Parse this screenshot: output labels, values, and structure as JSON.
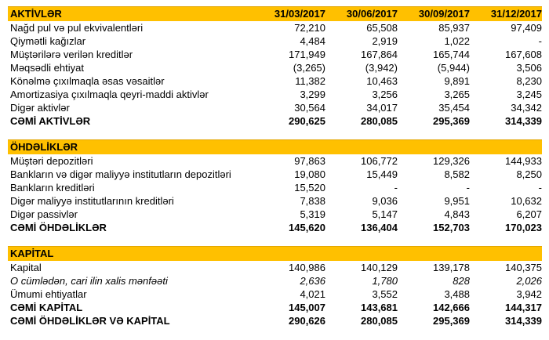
{
  "table": {
    "accent_color": "#FFC000",
    "text_color": "#000000",
    "date_columns": [
      "31/03/2017",
      "30/06/2017",
      "30/09/2017",
      "31/12/2017"
    ],
    "sections": [
      {
        "header": "AKTİVLƏR",
        "show_dates": true,
        "rows": [
          {
            "label": "Nağd pul və pul ekvivalentləri",
            "style": "normal",
            "values": [
              "72,210",
              "65,508",
              "85,937",
              "97,409"
            ]
          },
          {
            "label": "Qiymətli kağızlar",
            "style": "normal",
            "values": [
              "4,484",
              "2,919",
              "1,022",
              "-"
            ]
          },
          {
            "label": "Müştərilərə verilən kreditlər",
            "style": "normal",
            "values": [
              "171,949",
              "167,864",
              "165,744",
              "167,608"
            ]
          },
          {
            "label": "Məqsədli ehtiyat",
            "style": "normal",
            "values": [
              "(3,265)",
              "(3,942)",
              "(5,944)",
              "3,506"
            ]
          },
          {
            "label": "Könəlmə çıxılmaqla əsas vəsaitlər",
            "style": "normal",
            "values": [
              "11,382",
              "10,463",
              "9,891",
              "8,230"
            ]
          },
          {
            "label": "Amortizasiya çıxılmaqla qeyri-maddi aktivlər",
            "style": "normal",
            "values": [
              "3,299",
              "3,256",
              "3,265",
              "3,245"
            ]
          },
          {
            "label": "Digər aktivlər",
            "style": "normal",
            "values": [
              "30,564",
              "34,017",
              "35,454",
              "34,342"
            ]
          },
          {
            "label": "CƏMİ AKTİVLƏR",
            "style": "total",
            "values": [
              "290,625",
              "280,085",
              "295,369",
              "314,339"
            ]
          }
        ]
      },
      {
        "header": "ÖHDƏLİKLƏR",
        "show_dates": false,
        "rows": [
          {
            "label": "Müştəri depozitləri",
            "style": "normal",
            "values": [
              "97,863",
              "106,772",
              "129,326",
              "144,933"
            ]
          },
          {
            "label": "Bankların və digər maliyyə institutların depozitləri",
            "style": "normal",
            "values": [
              "19,080",
              "15,449",
              "8,582",
              "8,250"
            ]
          },
          {
            "label": "Bankların kreditləri",
            "style": "normal",
            "values": [
              "15,520",
              "-",
              "-",
              "-"
            ]
          },
          {
            "label": "Digər maliyyə institutlarının kreditləri",
            "style": "normal",
            "values": [
              "7,838",
              "9,036",
              "9,951",
              "10,632"
            ]
          },
          {
            "label": "Digər passivlər",
            "style": "normal",
            "values": [
              "5,319",
              "5,147",
              "4,843",
              "6,207"
            ]
          },
          {
            "label": "CƏMİ ÖHDƏLİKLƏR",
            "style": "total",
            "values": [
              "145,620",
              "136,404",
              "152,703",
              "170,023"
            ]
          }
        ]
      },
      {
        "header": "KAPİTAL",
        "show_dates": false,
        "rows": [
          {
            "label": "Kapital",
            "style": "normal",
            "values": [
              "140,986",
              "140,129",
              "139,178",
              "140,375"
            ]
          },
          {
            "label": "O cümlədən, cari ilin xalis mənfəəti",
            "style": "italic",
            "values": [
              "2,636",
              "1,780",
              "828",
              "2,026"
            ]
          },
          {
            "label": "Ümumi ehtiyatlar",
            "style": "normal",
            "values": [
              "4,021",
              "3,552",
              "3,488",
              "3,942"
            ]
          },
          {
            "label": "CƏMİ KAPİTAL",
            "style": "total",
            "values": [
              "145,007",
              "143,681",
              "142,666",
              "144,317"
            ]
          },
          {
            "label": "CƏMİ ÖHDƏLİKLƏR VƏ KAPİTAL",
            "style": "total",
            "values": [
              "290,626",
              "280,085",
              "295,369",
              "314,339"
            ]
          }
        ]
      }
    ]
  }
}
